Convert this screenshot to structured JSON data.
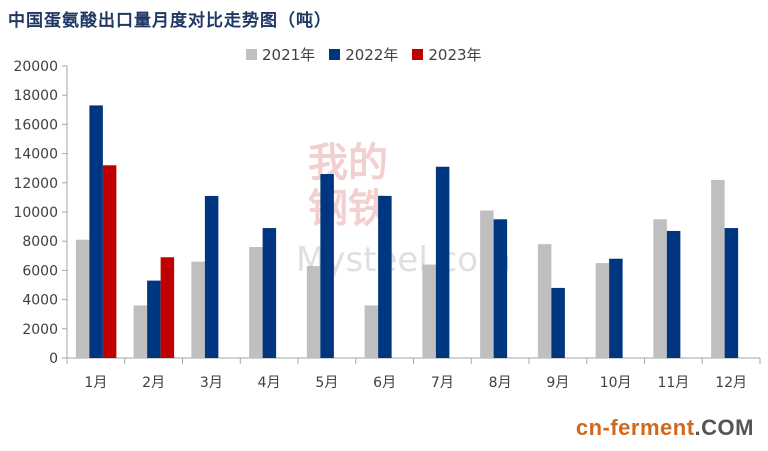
{
  "chart_data": {
    "type": "bar",
    "title": "中国蛋氨酸出口量月度对比走势图（吨）",
    "categories": [
      "1月",
      "2月",
      "3月",
      "4月",
      "5月",
      "6月",
      "7月",
      "8月",
      "9月",
      "10月",
      "11月",
      "12月"
    ],
    "series": [
      {
        "name": "2021年",
        "color": "#bfbfbf",
        "values": [
          8100,
          3600,
          6600,
          7600,
          6300,
          3600,
          6400,
          10100,
          7800,
          6500,
          9500,
          12200
        ]
      },
      {
        "name": "2022年",
        "color": "#003580",
        "values": [
          17300,
          5300,
          11100,
          8900,
          12600,
          11100,
          13100,
          9500,
          4800,
          6800,
          8700,
          8900
        ]
      },
      {
        "name": "2023年",
        "color": "#c00000",
        "values": [
          13200,
          6900,
          null,
          null,
          null,
          null,
          null,
          null,
          null,
          null,
          null,
          null
        ]
      }
    ],
    "ylim": [
      0,
      20000
    ],
    "yticks": [
      0,
      2000,
      4000,
      6000,
      8000,
      10000,
      12000,
      14000,
      16000,
      18000,
      20000
    ],
    "legend_position": "top-center",
    "grid": false
  },
  "watermark": {
    "cn": "我的钢铁",
    "en": "Mysteel.com"
  },
  "brand": {
    "main": "cn-ferment",
    "suffix": ".COM",
    "color": "#d0691b"
  }
}
